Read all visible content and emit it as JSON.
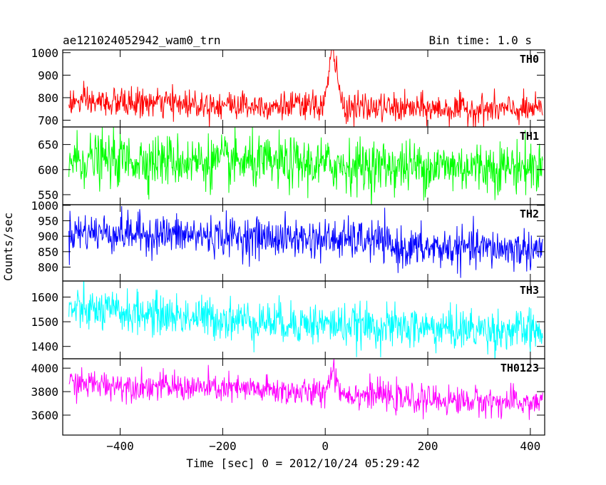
{
  "header": {
    "left_title": "ae121024052942_wam0_trn",
    "right_title": "Bin time: 1.0 s"
  },
  "chart_data": {
    "type": "line",
    "xlabel": "Time [sec] 0 = 2012/10/24 05:29:42",
    "ylabel": "Counts/sec",
    "xlim": [
      -512,
      428
    ],
    "x_ticks": [
      -400,
      -200,
      0,
      200,
      400
    ],
    "x_range_data": [
      -500,
      424
    ],
    "bin_time_s": 1.0,
    "panels": [
      {
        "name": "TH0",
        "color": "#ff0000",
        "ylim": [
          670,
          1012
        ],
        "y_ticks": [
          700,
          800,
          900,
          1000
        ],
        "baseline": {
          "x": [
            -500,
            -300,
            -100,
            0,
            200,
            424
          ],
          "y": [
            780,
            775,
            765,
            760,
            750,
            745
          ]
        },
        "noise_sd": 32,
        "peak": {
          "x": 15,
          "height": 240,
          "width": 8
        }
      },
      {
        "name": "TH1",
        "color": "#00ff00",
        "ylim": [
          530,
          685
        ],
        "y_ticks": [
          550,
          600,
          650
        ],
        "baseline": {
          "x": [
            -500,
            -300,
            -100,
            100,
            424
          ],
          "y": [
            620,
            618,
            612,
            607,
            605
          ]
        },
        "noise_sd": 26,
        "peak": null
      },
      {
        "name": "TH2",
        "color": "#0000ff",
        "ylim": [
          755,
          1002
        ],
        "y_ticks": [
          800,
          850,
          900,
          950,
          1000
        ],
        "baseline": {
          "x": [
            -500,
            -300,
            0,
            110,
            130,
            424
          ],
          "y": [
            915,
            905,
            890,
            885,
            862,
            858
          ]
        },
        "noise_sd": 32,
        "peak": null
      },
      {
        "name": "TH3",
        "color": "#00ffff",
        "ylim": [
          1350,
          1665
        ],
        "y_ticks": [
          1400,
          1500,
          1600
        ],
        "baseline": {
          "x": [
            -500,
            -300,
            -100,
            100,
            424
          ],
          "y": [
            1550,
            1525,
            1500,
            1480,
            1460
          ]
        },
        "noise_sd": 42,
        "peak": null
      },
      {
        "name": "TH0123",
        "color": "#ff00ff",
        "ylim": [
          3430,
          4080
        ],
        "y_ticks": [
          3600,
          3800,
          4000
        ],
        "baseline": {
          "x": [
            -500,
            -300,
            -100,
            0,
            110,
            130,
            424
          ],
          "y": [
            3870,
            3840,
            3810,
            3780,
            3775,
            3740,
            3700
          ]
        },
        "noise_sd": 60,
        "peak": {
          "x": 15,
          "height": 200,
          "width": 8
        }
      }
    ]
  }
}
